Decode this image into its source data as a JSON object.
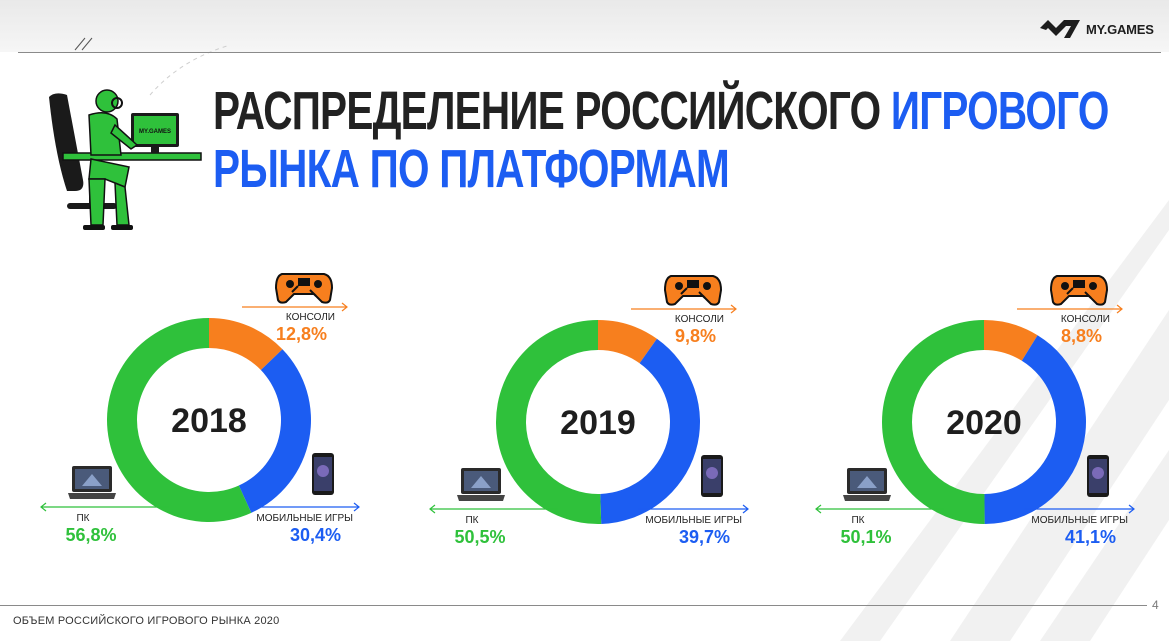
{
  "header": {
    "logo_text": "MY.GAMES",
    "title_dark_1": "РАСПРЕДЕЛЕНИЕ РОССИЙСКОГО",
    "title_blue_1": "ИГРОВОГО",
    "title_blue_2": "РЫНКА ПО ПЛАТФОРМАМ"
  },
  "illustration": {
    "monitor_label": "MY.GAMES"
  },
  "colors": {
    "pc": "#2fc13b",
    "consoles": "#f77f1e",
    "mobile": "#1c5df2",
    "title_dark": "#222222",
    "title_blue": "#1c5df2"
  },
  "icons": {
    "consoles": "gamepad-icon",
    "pc": "laptop-icon",
    "mobile": "smartphone-icon"
  },
  "chart_data": [
    {
      "type": "pie",
      "center_label": "2018",
      "slices": [
        {
          "label": "КОНСОЛИ",
          "value": 12.8,
          "value_label": "12,8%"
        },
        {
          "label": "МОБИЛЬНЫЕ ИГРЫ",
          "value": 30.4,
          "value_label": "30,4%"
        },
        {
          "label": "ПК",
          "value": 56.8,
          "value_label": "56,8%"
        }
      ]
    },
    {
      "type": "pie",
      "center_label": "2019",
      "slices": [
        {
          "label": "КОНСОЛИ",
          "value": 9.8,
          "value_label": "9,8%"
        },
        {
          "label": "МОБИЛЬНЫЕ ИГРЫ",
          "value": 39.7,
          "value_label": "39,7%"
        },
        {
          "label": "ПК",
          "value": 50.5,
          "value_label": "50,5%"
        }
      ]
    },
    {
      "type": "pie",
      "center_label": "2020",
      "slices": [
        {
          "label": "КОНСОЛИ",
          "value": 8.8,
          "value_label": "8,8%"
        },
        {
          "label": "МОБИЛЬНЫЕ ИГРЫ",
          "value": 41.1,
          "value_label": "41,1%"
        },
        {
          "label": "ПК",
          "value": 50.1,
          "value_label": "50,1%"
        }
      ]
    }
  ],
  "footer": {
    "text": "ОБЪЕМ РОССИЙСКОГО ИГРОВОГО РЫНКА 2020",
    "page_number": "4"
  }
}
